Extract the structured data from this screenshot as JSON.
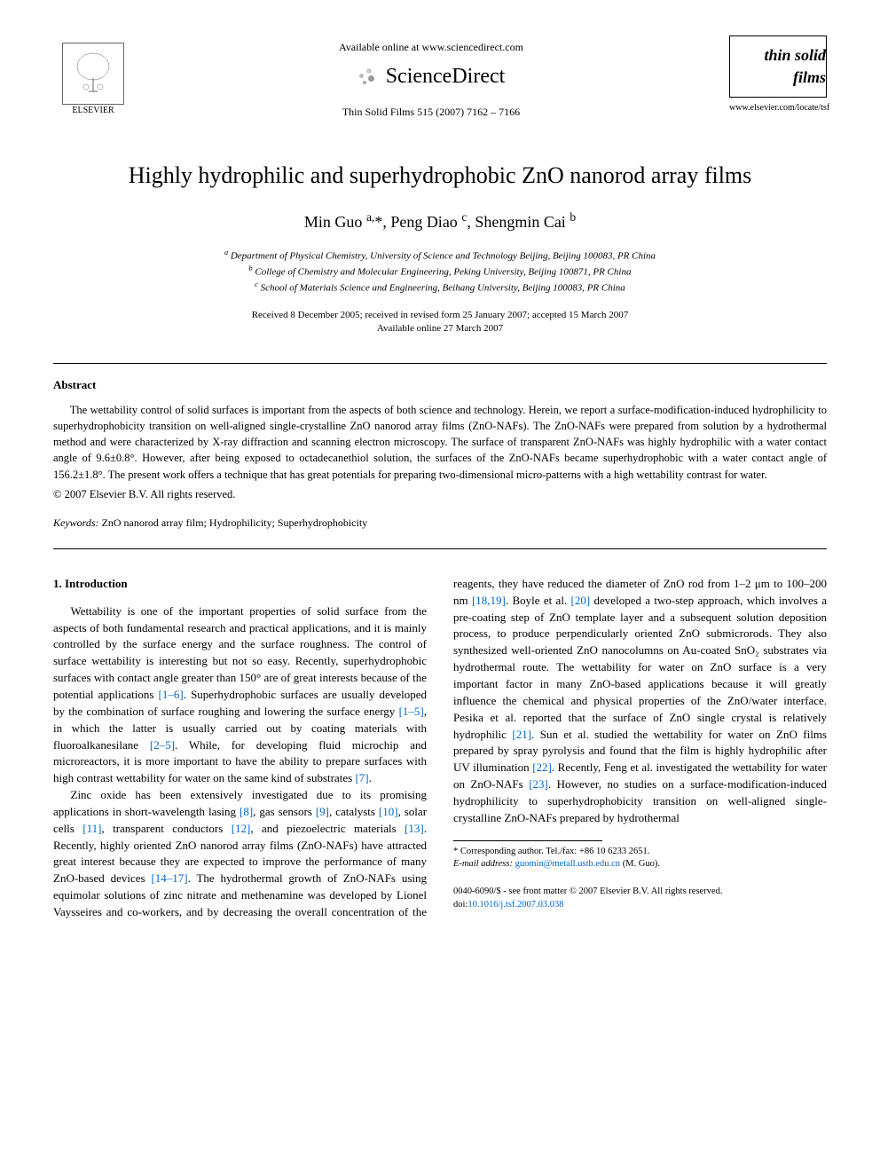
{
  "header": {
    "available_online": "Available online at www.sciencedirect.com",
    "sciencedirect": "ScienceDirect",
    "journal_ref": "Thin Solid Films 515 (2007) 7162 – 7166",
    "elsevier_label": "ELSEVIER",
    "journal_logo_text": "thin solid films",
    "journal_url": "www.elsevier.com/locate/tsf"
  },
  "article": {
    "title": "Highly hydrophilic and superhydrophobic ZnO nanorod array films",
    "authors_html": "Min Guo <sup>a,</sup>*, Peng Diao <sup>c</sup>, Shengmin Cai <sup>b</sup>",
    "affiliations": {
      "a": "Department of Physical Chemistry, University of Science and Technology Beijing, Beijing 100083, PR China",
      "b": "College of Chemistry and Molecular Engineering, Peking University, Beijing 100871, PR China",
      "c": "School of Materials Science and Engineering, Beihang University, Beijing 100083, PR China"
    },
    "dates": {
      "received": "Received 8 December 2005; received in revised form 25 January 2007; accepted 15 March 2007",
      "available": "Available online 27 March 2007"
    }
  },
  "abstract": {
    "heading": "Abstract",
    "text": "The wettability control of solid surfaces is important from the aspects of both science and technology. Herein, we report a surface-modification-induced hydrophilicity to superhydrophobicity transition on well-aligned single-crystalline ZnO nanorod array films (ZnO-NAFs). The ZnO-NAFs were prepared from solution by a hydrothermal method and were characterized by X-ray diffraction and scanning electron microscopy. The surface of transparent ZnO-NAFs was highly hydrophilic with a water contact angle of 9.6±0.8°. However, after being exposed to octadecanethiol solution, the surfaces of the ZnO-NAFs became superhydrophobic with a water contact angle of 156.2±1.8°. The present work offers a technique that has great potentials for preparing two-dimensional micro-patterns with a high wettability contrast for water.",
    "copyright": "© 2007 Elsevier B.V. All rights reserved.",
    "keywords_label": "Keywords:",
    "keywords": "ZnO nanorod array film; Hydrophilicity; Superhydrophobicity"
  },
  "body": {
    "section1_heading": "1. Introduction",
    "para1_pre": "Wettability is one of the important properties of solid surface from the aspects of both fundamental research and practical applications, and it is mainly controlled by the surface energy and the surface roughness. The control of surface wettability is interesting but not so easy. Recently, superhydrophobic surfaces with contact angle greater than 150° are of great interests because of the potential applications ",
    "ref_1_6": "[1–6]",
    "para1_mid1": ". Superhydrophobic surfaces are usually developed by the combination of surface roughing and lowering the surface energy ",
    "ref_1_5": "[1–5]",
    "para1_mid2": ", in which the latter is usually carried out by coating materials with fluoroalkanesilane ",
    "ref_2_5": "[2–5]",
    "para1_mid3": ". While, for developing fluid microchip and microreactors, it is more important to have the ability to prepare surfaces with high contrast wettability for water on the same kind of substrates ",
    "ref_7": "[7]",
    "para1_end": ".",
    "para2_pre": "Zinc oxide has been extensively investigated due to its promising applications in short-wavelength lasing ",
    "ref_8": "[8]",
    "para2_m1": ", gas sensors ",
    "ref_9": "[9]",
    "para2_m2": ", catalysts ",
    "ref_10": "[10]",
    "para2_m3": ", solar cells ",
    "ref_11": "[11]",
    "para2_m4": ", transparent conductors ",
    "ref_12": "[12]",
    "para2_m5": ", and piezoelectric materials ",
    "ref_13": "[13]",
    "para2_m6": ". Recently, highly oriented ZnO nanorod array films (ZnO-NAFs) have attracted great interest because they are expected to improve the performance of many ZnO-based devices ",
    "ref_14_17": "[14–17]",
    "para2_m7": ". The hydrothermal growth of ZnO-NAFs using equimolar solutions of zinc nitrate and methenamine was developed by Lionel Vaysseires and co-workers, and by decreasing the overall concentration of the reagents, they have reduced the diameter of ZnO rod from 1–2 μm to 100–200 nm ",
    "ref_18_19": "[18,19]",
    "para2_m8": ". Boyle et al. ",
    "ref_20": "[20]",
    "para2_m9": " developed a two-step approach, which involves a pre-coating step of ZnO template layer and a subsequent solution deposition process, to produce perpendicularly oriented ZnO submicrorods. They also synthesized well-oriented ZnO nanocolumns on Au-coated SnO₂ substrates via hydrothermal route. The wettability for water on ZnO surface is a very important factor in many ZnO-based applications because it will greatly influence the chemical and physical properties of the ZnO/water interface. Pesika et al. reported that the surface of ZnO single crystal is relatively hydrophilic ",
    "ref_21": "[21]",
    "para2_m10": ". Sun et al. studied the wettability for water on ZnO films prepared by spray pyrolysis and found that the film is highly hydrophilic after UV illumination ",
    "ref_22": "[22]",
    "para2_m11": ". Recently, Feng et al. investigated the wettability for water on ZnO-NAFs ",
    "ref_23": "[23]",
    "para2_m12": ". However, no studies on a surface-modification-induced hydrophilicity to superhydrophobicity transition on well-aligned single-crystalline ZnO-NAFs prepared by hydrothermal"
  },
  "footnote": {
    "corresponding": "* Corresponding author. Tel./fax: +86 10 6233 2651.",
    "email_label": "E-mail address:",
    "email": "guomin@metall.ustb.edu.cn",
    "email_suffix": "(M. Guo)."
  },
  "footer": {
    "issn_line": "0040-6090/$ - see front matter © 2007 Elsevier B.V. All rights reserved.",
    "doi_label": "doi:",
    "doi": "10.1016/j.tsf.2007.03.038"
  },
  "colors": {
    "link": "#0066cc",
    "text": "#000000",
    "bg": "#ffffff"
  }
}
